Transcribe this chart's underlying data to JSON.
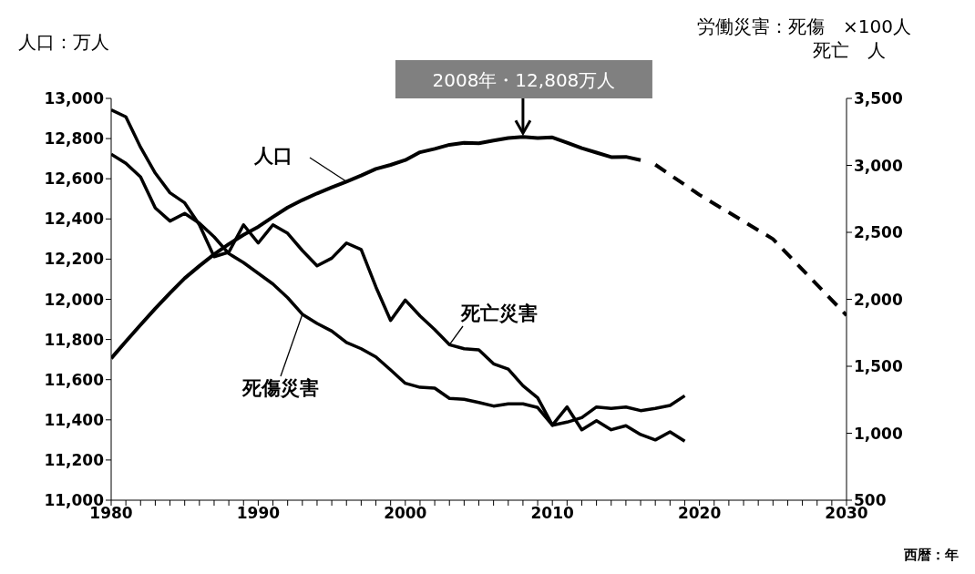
{
  "chart_data": {
    "type": "line",
    "ylabel": "人口：万人",
    "y2label": "労働災害：死傷　×100人",
    "xlabel": "西暦：年",
    "xlim": [
      1980,
      2030
    ],
    "xticks": [
      1980,
      {
        "value": 1981,
        "label": null
      },
      {
        "value": 1982,
        "label": null
      },
      {
        "value": 1983,
        "label": null
      },
      {
        "value": 1984,
        "label": null
      },
      {
        "value": 1985,
        "label": null
      },
      {
        "value": 1986,
        "label": null
      },
      {
        "value": 1987,
        "label": null
      },
      {
        "value": 1988,
        "label": null
      },
      {
        "value": 1989,
        "label": null
      },
      1990,
      {
        "value": 1991,
        "label": null
      },
      {
        "value": 1992,
        "label": null
      },
      {
        "value": 1993,
        "label": null
      },
      {
        "value": 1994,
        "label": null
      },
      {
        "value": 1995,
        "label": null
      },
      {
        "value": 1996,
        "label": null
      },
      {
        "value": 1997,
        "label": null
      },
      {
        "value": 1998,
        "label": null
      },
      {
        "value": 1999,
        "label": null
      },
      2000,
      {
        "value": 2001,
        "label": null
      },
      {
        "value": 2002,
        "label": null
      },
      {
        "value": 2003,
        "label": null
      },
      {
        "value": 2004,
        "label": null
      },
      {
        "value": 2005,
        "label": null
      },
      {
        "value": 2006,
        "label": null
      },
      {
        "value": 2007,
        "label": null
      },
      {
        "value": 2008,
        "label": null
      },
      {
        "value": 2009,
        "label": null
      },
      2010,
      {
        "value": 2011,
        "label": null
      },
      {
        "value": 2012,
        "label": null
      },
      {
        "value": 2013,
        "label": null
      },
      {
        "value": 2014,
        "label": null
      },
      {
        "value": 2015,
        "label": null
      },
      {
        "value": 2016,
        "label": null
      },
      {
        "value": 2017,
        "label": null
      },
      {
        "value": 2018,
        "label": null
      },
      {
        "value": 2019,
        "label": null
      },
      2020,
      {
        "value": 2021,
        "label": null
      },
      {
        "value": 2022,
        "label": null
      },
      {
        "value": 2023,
        "label": null
      },
      {
        "value": 2024,
        "label": null
      },
      {
        "value": 2025,
        "label": null
      },
      {
        "value": 2026,
        "label": null
      },
      {
        "value": 2027,
        "label": null
      },
      {
        "value": 2028,
        "label": null
      },
      {
        "value": 2029,
        "label": null
      },
      2030
    ],
    "ylim": [
      11000,
      13000
    ],
    "yticks": [
      {
        "value": 11000,
        "label": "11,000"
      },
      {
        "value": 11200,
        "label": "11,200"
      },
      {
        "value": 11400,
        "label": "11,400"
      },
      {
        "value": 11600,
        "label": "11,600"
      },
      {
        "value": 11800,
        "label": "11,800"
      },
      {
        "value": 12000,
        "label": "12,000"
      },
      {
        "value": 12200,
        "label": "12,200"
      },
      {
        "value": 12400,
        "label": "12,400"
      },
      {
        "value": 12600,
        "label": "12,600"
      },
      {
        "value": 12800,
        "label": "12,800"
      },
      {
        "value": 13000,
        "label": "13,000"
      }
    ],
    "y2lim": [
      500,
      3500
    ],
    "y2ticks": [
      500,
      {
        "value": 1000,
        "label": "1,000"
      },
      {
        "value": 1500,
        "label": "1,500"
      },
      {
        "value": 2000,
        "label": "2,000"
      },
      {
        "value": 2500,
        "label": "2,500"
      },
      {
        "value": 3000,
        "label": "3,000"
      },
      {
        "value": 3500,
        "label": "3,500"
      }
    ],
    "marker": "none",
    "line_style": "solid",
    "series": [
      {
        "name": "人口",
        "color": "#000000",
        "x": [
          1980,
          1981,
          1982,
          1983,
          1984,
          1985,
          1986,
          1987,
          1988,
          1989,
          1990,
          1991,
          1992,
          1993,
          1994,
          1995,
          1996,
          1997,
          1998,
          1999,
          2000,
          2001,
          2002,
          2003,
          2004,
          2005,
          2006,
          2007,
          2008,
          2009,
          2010,
          2011,
          2012,
          2013,
          2014,
          2015,
          2016
        ],
        "values": [
          11706,
          11790,
          11873,
          11954,
          12031,
          12105,
          12166,
          12224,
          12275,
          12321,
          12361,
          12410,
          12457,
          12494,
          12527,
          12557,
          12586,
          12616,
          12649,
          12669,
          12693,
          12732,
          12749,
          12769,
          12779,
          12777,
          12790,
          12803,
          12808,
          12803,
          12806,
          12780,
          12752,
          12730,
          12708,
          12709,
          12693
        ]
      },
      {
        "color": "#000000",
        "line_style": "dashed",
        "x": [
          2017,
          2020,
          2025,
          2030
        ],
        "values": [
          12670,
          12520,
          12300,
          11920
        ]
      },
      {
        "name": "死亡災害",
        "color": "#000000",
        "axis": "y2",
        "x": [
          1980,
          1981,
          1982,
          1983,
          1984,
          1985,
          1986,
          1987,
          1988,
          1989,
          1990,
          1991,
          1992,
          1993,
          1994,
          1995,
          1996,
          1997,
          1998,
          1999,
          2000,
          2001,
          2002,
          2003,
          2004,
          2005,
          2006,
          2007,
          2008,
          2009,
          2010,
          2011,
          2012,
          2013,
          2014,
          2015,
          2016,
          2017,
          2018,
          2019
        ],
        "values": [
          3414,
          3362,
          3135,
          2942,
          2795,
          2720,
          2556,
          2318,
          2352,
          2556,
          2420,
          2556,
          2493,
          2364,
          2250,
          2307,
          2420,
          2371,
          2092,
          1842,
          1994,
          1876,
          1774,
          1661,
          1631,
          1622,
          1518,
          1479,
          1355,
          1264,
          1060,
          1196,
          1026,
          1094,
          1026,
          1056,
          990,
          950,
          1010,
          940
        ]
      },
      {
        "name": "死傷災害",
        "color": "#000000",
        "axis": "y2",
        "x": [
          1980,
          1981,
          1982,
          1983,
          1984,
          1985,
          1986,
          1987,
          1988,
          1989,
          1990,
          1991,
          1992,
          1993,
          1994,
          1995,
          1996,
          1997,
          1998,
          1999,
          2000,
          2001,
          2002,
          2003,
          2004,
          2005,
          2006,
          2007,
          2008,
          2009,
          2010,
          2011,
          2012,
          2013,
          2014,
          2015,
          2016,
          2017,
          2018,
          2019
        ],
        "values": [
          3083,
          3015,
          2913,
          2682,
          2584,
          2641,
          2568,
          2466,
          2341,
          2274,
          2194,
          2114,
          2012,
          1888,
          1820,
          1763,
          1677,
          1631,
          1570,
          1473,
          1373,
          1343,
          1337,
          1260,
          1253,
          1230,
          1203,
          1219,
          1219,
          1192,
          1060,
          1083,
          1117,
          1196,
          1185,
          1196,
          1169,
          1185,
          1207,
          1280
        ]
      }
    ],
    "annotations": [
      {
        "text": "2008年・12,808万人",
        "x": 2008,
        "y": 12808
      },
      "死亡　人"
    ]
  }
}
